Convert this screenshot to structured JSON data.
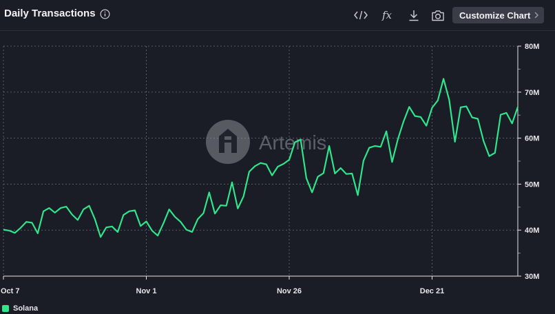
{
  "header": {
    "title": "Daily Transactions",
    "customize_label": "Customize Chart",
    "fx_label": "fx"
  },
  "watermark": {
    "text": "Artemis"
  },
  "chart_data": {
    "type": "line",
    "title": "Daily Transactions",
    "xlabel": "",
    "ylabel": "",
    "x_tick_labels": [
      "Oct 7",
      "Nov 1",
      "Nov 26",
      "Dec 21"
    ],
    "y_tick_labels": [
      "30M",
      "40M",
      "50M",
      "60M",
      "70M",
      "80M"
    ],
    "ylim": [
      30,
      80
    ],
    "y_unit": "M",
    "grid": true,
    "legend_position": "bottom-left",
    "x_start": "Oct 7",
    "series": [
      {
        "name": "Solana",
        "color": "#2fe68c",
        "values": [
          40.1,
          39.9,
          39.4,
          40.5,
          41.8,
          41.6,
          39.3,
          44.1,
          44.8,
          43.8,
          44.8,
          45.1,
          43.4,
          42.2,
          44.5,
          45.3,
          42.4,
          38.5,
          40.6,
          40.8,
          39.6,
          43.3,
          44.1,
          44.3,
          40.9,
          41.9,
          39.9,
          38.8,
          41.5,
          44.5,
          42.9,
          41.8,
          40.1,
          39.6,
          42.4,
          43.7,
          48.2,
          43.6,
          45.4,
          45.3,
          50.4,
          44.7,
          47.3,
          52.7,
          53.9,
          54.6,
          54.3,
          51.9,
          53.8,
          54.4,
          55.3,
          59.1,
          59.7,
          51.3,
          48.2,
          51.6,
          52.4,
          58.3,
          52.3,
          53.5,
          52.2,
          52.3,
          47.6,
          55.1,
          57.9,
          58.3,
          58.1,
          61.5,
          54.8,
          59.7,
          63.6,
          66.8,
          64.8,
          64.6,
          62.7,
          66.6,
          68.2,
          72.9,
          68.3,
          59.2,
          66.7,
          66.9,
          64.5,
          64.2,
          59.4,
          56.1,
          56.8,
          65.1,
          65.5,
          63.2,
          66.8
        ]
      }
    ]
  }
}
